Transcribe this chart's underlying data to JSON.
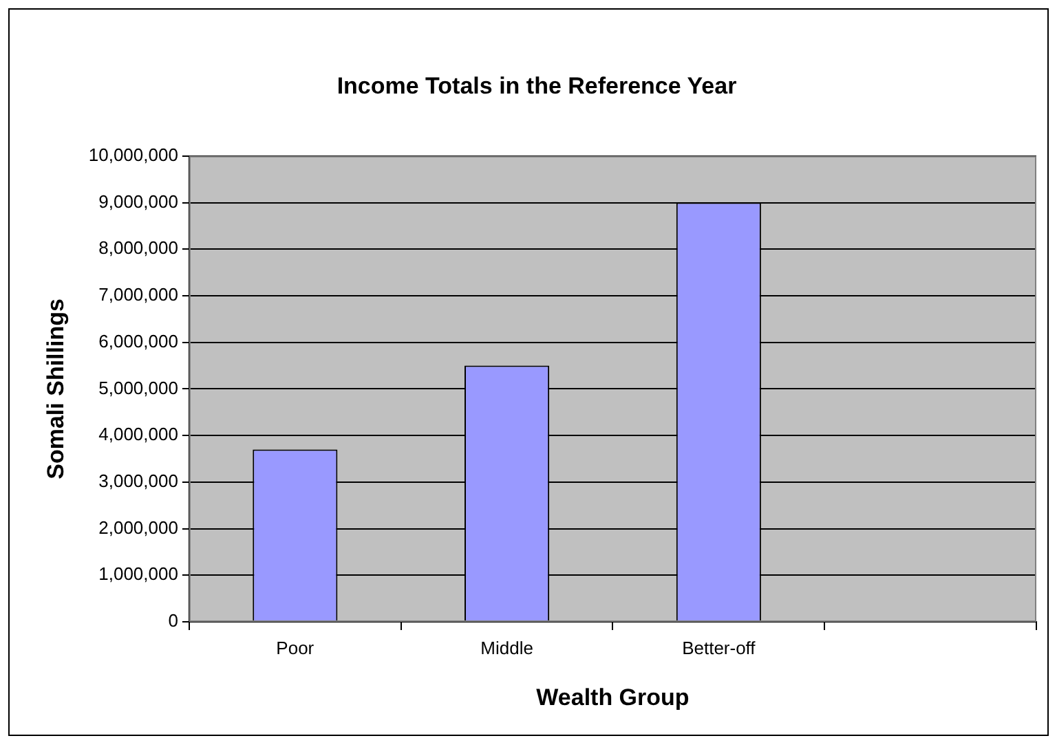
{
  "chart_data": {
    "type": "bar",
    "title": "Income Totals in the Reference Year",
    "xlabel": "Wealth Group",
    "ylabel": "Somali Shillings",
    "categories": [
      "Poor",
      "Middle",
      "Better-off",
      null
    ],
    "values": [
      3700000,
      5500000,
      9000000,
      null
    ],
    "color": "#9999ff",
    "ylim": [
      0,
      10000000
    ],
    "yticks": [
      {
        "value": 0,
        "label": "0"
      },
      {
        "value": 1000000,
        "label": "1,000,000"
      },
      {
        "value": 2000000,
        "label": "2,000,000"
      },
      {
        "value": 3000000,
        "label": "3,000,000"
      },
      {
        "value": 4000000,
        "label": "4,000,000"
      },
      {
        "value": 5000000,
        "label": "5,000,000"
      },
      {
        "value": 6000000,
        "label": "6,000,000"
      },
      {
        "value": 7000000,
        "label": "7,000,000"
      },
      {
        "value": 8000000,
        "label": "8,000,000"
      },
      {
        "value": 9000000,
        "label": "9,000,000"
      },
      {
        "value": 10000000,
        "label": "10,000,000"
      }
    ],
    "grid": "y",
    "legend": false
  }
}
